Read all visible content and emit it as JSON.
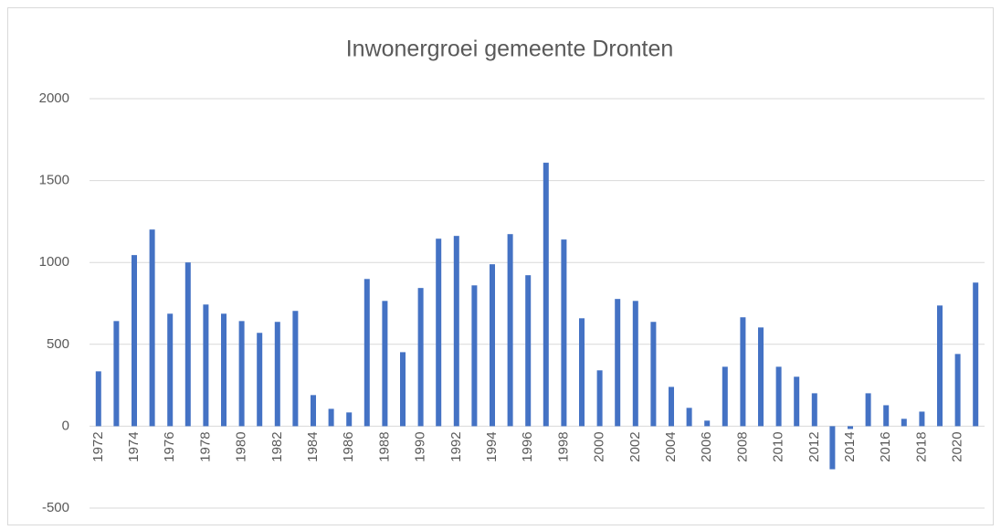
{
  "chart_data": {
    "type": "bar",
    "title": "Inwonergroei gemeente Dronten",
    "categories": [
      "1972",
      null,
      "1974",
      null,
      "1976",
      null,
      "1978",
      null,
      "1980",
      null,
      "1982",
      null,
      "1984",
      null,
      "1986",
      null,
      "1988",
      null,
      "1990",
      null,
      "1992",
      null,
      "1994",
      null,
      "1996",
      null,
      "1998",
      null,
      "2000",
      null,
      "2002",
      null,
      "2004",
      null,
      "2006",
      null,
      "2008",
      null,
      "2010",
      null,
      "2012",
      null,
      "2014",
      null,
      "2016",
      null,
      "2018",
      null,
      "2020",
      null
    ],
    "values": [
      335,
      642,
      1045,
      1201,
      687,
      1000,
      743,
      687,
      642,
      570,
      637,
      704,
      190,
      106,
      84,
      899,
      765,
      452,
      844,
      1145,
      1162,
      860,
      989,
      1173,
      922,
      1609,
      1140,
      659,
      341,
      777,
      765,
      637,
      240,
      112,
      34,
      363,
      665,
      603,
      363,
      302,
      201,
      -263,
      -17,
      201,
      128,
      45,
      89,
      737,
      441,
      877
    ],
    "color": "#4472c4",
    "ylim": [
      -500,
      2000
    ],
    "yticks": [
      -500,
      0,
      500,
      1000,
      1500,
      2000
    ],
    "grid": true
  }
}
